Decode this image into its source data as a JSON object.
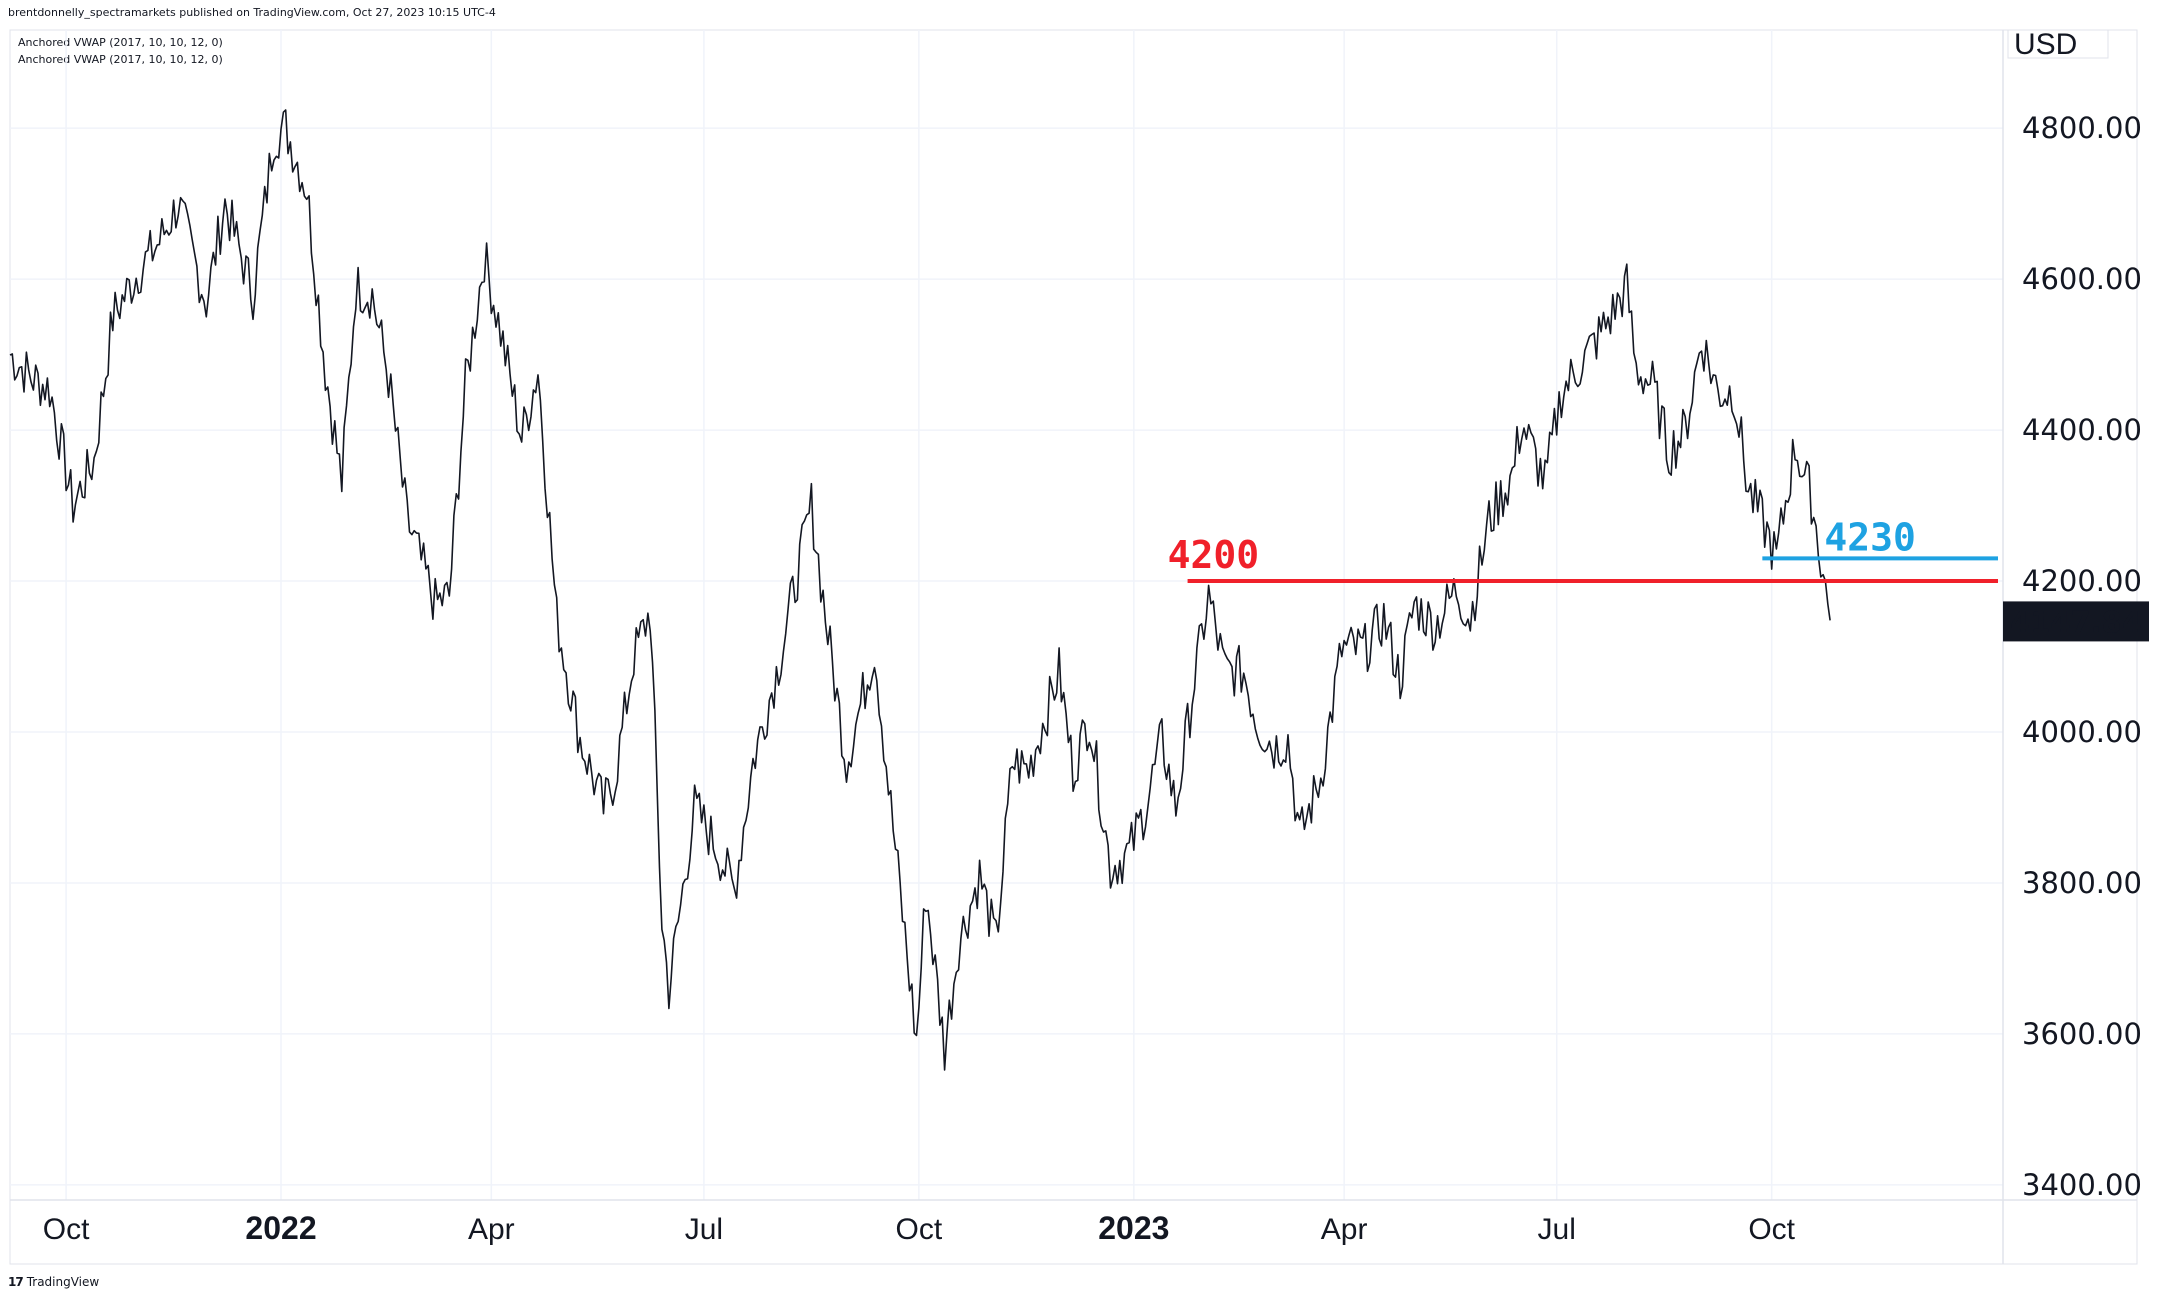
{
  "header": {
    "publisher": "brentdonnelly_spectramarkets published on TradingView.com, Oct 27, 2023 10:15 UTC-4"
  },
  "indicators": [
    "Anchored VWAP (2017, 10, 10, 12, 0)",
    "Anchored VWAP (2017, 10, 10, 12, 0)"
  ],
  "footer": {
    "brand": "TradingView",
    "logo_icon": "tradingview-logo-icon"
  },
  "chart_data": {
    "type": "line",
    "title": "",
    "currency_label": "USD",
    "ylim": [
      3380,
      4930
    ],
    "y_ticks": [
      {
        "value": 3400,
        "label": "3400.00"
      },
      {
        "value": 3600,
        "label": "3600.00"
      },
      {
        "value": 3800,
        "label": "3800.00"
      },
      {
        "value": 4000,
        "label": "4000.00"
      },
      {
        "value": 4200,
        "label": "4200.00"
      },
      {
        "value": 4400,
        "label": "4400.00"
      },
      {
        "value": 4600,
        "label": "4600.00"
      },
      {
        "value": 4800,
        "label": "4800.00"
      }
    ],
    "x_ticks": [
      {
        "date": "2021-10-01",
        "label": "Oct",
        "bold": false
      },
      {
        "date": "2022-01-01",
        "label": "2022",
        "bold": true
      },
      {
        "date": "2022-04-01",
        "label": "Apr",
        "bold": false
      },
      {
        "date": "2022-07-01",
        "label": "Jul",
        "bold": false
      },
      {
        "date": "2022-10-01",
        "label": "Oct",
        "bold": false
      },
      {
        "date": "2023-01-01",
        "label": "2023",
        "bold": true
      },
      {
        "date": "2023-04-01",
        "label": "Apr",
        "bold": false
      },
      {
        "date": "2023-07-01",
        "label": "Jul",
        "bold": false
      },
      {
        "date": "2023-10-01",
        "label": "Oct",
        "bold": false
      }
    ],
    "x_range": [
      "2021-09-07",
      "2024-01-08"
    ],
    "last_price": {
      "value": 4147.84,
      "label": "4147.84"
    },
    "grid": true,
    "series": [
      {
        "color": "#131722",
        "points": [
          [
            "2021-09-07",
            4500
          ],
          [
            "2021-09-16",
            4470
          ],
          [
            "2021-09-24",
            4455
          ],
          [
            "2021-10-04",
            4300
          ],
          [
            "2021-10-13",
            4360
          ],
          [
            "2021-10-21",
            4550
          ],
          [
            "2021-11-01",
            4610
          ],
          [
            "2021-11-10",
            4650
          ],
          [
            "2021-11-18",
            4700
          ],
          [
            "2021-11-30",
            4570
          ],
          [
            "2021-12-08",
            4700
          ],
          [
            "2021-12-20",
            4580
          ],
          [
            "2021-12-29",
            4790
          ],
          [
            "2022-01-03",
            4800
          ],
          [
            "2022-01-12",
            4720
          ],
          [
            "2022-01-20",
            4480
          ],
          [
            "2022-01-27",
            4330
          ],
          [
            "2022-02-02",
            4590
          ],
          [
            "2022-02-09",
            4580
          ],
          [
            "2022-02-16",
            4470
          ],
          [
            "2022-02-24",
            4280
          ],
          [
            "2022-03-08",
            4170
          ],
          [
            "2022-03-14",
            4180
          ],
          [
            "2022-03-21",
            4460
          ],
          [
            "2022-03-29",
            4630
          ],
          [
            "2022-04-05",
            4530
          ],
          [
            "2022-04-14",
            4390
          ],
          [
            "2022-04-21",
            4480
          ],
          [
            "2022-04-29",
            4150
          ],
          [
            "2022-05-09",
            3990
          ],
          [
            "2022-05-19",
            3900
          ],
          [
            "2022-05-24",
            3940
          ],
          [
            "2022-06-01",
            4100
          ],
          [
            "2022-06-08",
            4160
          ],
          [
            "2022-06-13",
            3750
          ],
          [
            "2022-06-16",
            3660
          ],
          [
            "2022-06-27",
            3900
          ],
          [
            "2022-07-06",
            3850
          ],
          [
            "2022-07-14",
            3790
          ],
          [
            "2022-07-22",
            3960
          ],
          [
            "2022-08-02",
            4090
          ],
          [
            "2022-08-10",
            4210
          ],
          [
            "2022-08-16",
            4300
          ],
          [
            "2022-08-23",
            4130
          ],
          [
            "2022-08-31",
            3960
          ],
          [
            "2022-09-12",
            4110
          ],
          [
            "2022-09-19",
            3900
          ],
          [
            "2022-09-30",
            3590
          ],
          [
            "2022-10-04",
            3790
          ],
          [
            "2022-10-12",
            3580
          ],
          [
            "2022-10-18",
            3720
          ],
          [
            "2022-10-27",
            3810
          ],
          [
            "2022-11-03",
            3720
          ],
          [
            "2022-11-10",
            3960
          ],
          [
            "2022-11-17",
            3950
          ],
          [
            "2022-11-30",
            4080
          ],
          [
            "2022-12-06",
            3950
          ],
          [
            "2022-12-13",
            4020
          ],
          [
            "2022-12-22",
            3820
          ],
          [
            "2022-12-30",
            3840
          ],
          [
            "2023-01-06",
            3900
          ],
          [
            "2023-01-13",
            3990
          ],
          [
            "2023-01-19",
            3900
          ],
          [
            "2023-01-27",
            4070
          ],
          [
            "2023-02-02",
            4180
          ],
          [
            "2023-02-09",
            4080
          ],
          [
            "2023-02-17",
            4080
          ],
          [
            "2023-02-23",
            4010
          ],
          [
            "2023-03-02",
            3980
          ],
          [
            "2023-03-08",
            3990
          ],
          [
            "2023-03-13",
            3860
          ],
          [
            "2023-03-22",
            3940
          ],
          [
            "2023-03-31",
            4110
          ],
          [
            "2023-04-10",
            4110
          ],
          [
            "2023-04-18",
            4150
          ],
          [
            "2023-04-25",
            4070
          ],
          [
            "2023-05-01",
            4170
          ],
          [
            "2023-05-10",
            4140
          ],
          [
            "2023-05-19",
            4190
          ],
          [
            "2023-05-25",
            4150
          ],
          [
            "2023-06-02",
            4280
          ],
          [
            "2023-06-12",
            4340
          ],
          [
            "2023-06-16",
            4410
          ],
          [
            "2023-06-26",
            4330
          ],
          [
            "2023-07-03",
            4450
          ],
          [
            "2023-07-14",
            4500
          ],
          [
            "2023-07-24",
            4550
          ],
          [
            "2023-07-31",
            4590
          ],
          [
            "2023-08-04",
            4480
          ],
          [
            "2023-08-11",
            4460
          ],
          [
            "2023-08-18",
            4370
          ],
          [
            "2023-08-25",
            4400
          ],
          [
            "2023-09-01",
            4520
          ],
          [
            "2023-09-08",
            4450
          ],
          [
            "2023-09-15",
            4450
          ],
          [
            "2023-09-21",
            4320
          ],
          [
            "2023-09-27",
            4280
          ],
          [
            "2023-10-03",
            4230
          ],
          [
            "2023-10-11",
            4380
          ],
          [
            "2023-10-18",
            4310
          ],
          [
            "2023-10-23",
            4210
          ],
          [
            "2023-10-26",
            4147.84
          ]
        ]
      }
    ],
    "annotations": [
      {
        "label": "4200",
        "value": 4200,
        "color": "#f0202a",
        "from": "2023-01-24",
        "to": "2024-01-08"
      },
      {
        "label": "4230",
        "value": 4230,
        "color": "#1ea2e2",
        "from": "2023-09-27",
        "to": "2024-01-08"
      }
    ]
  }
}
